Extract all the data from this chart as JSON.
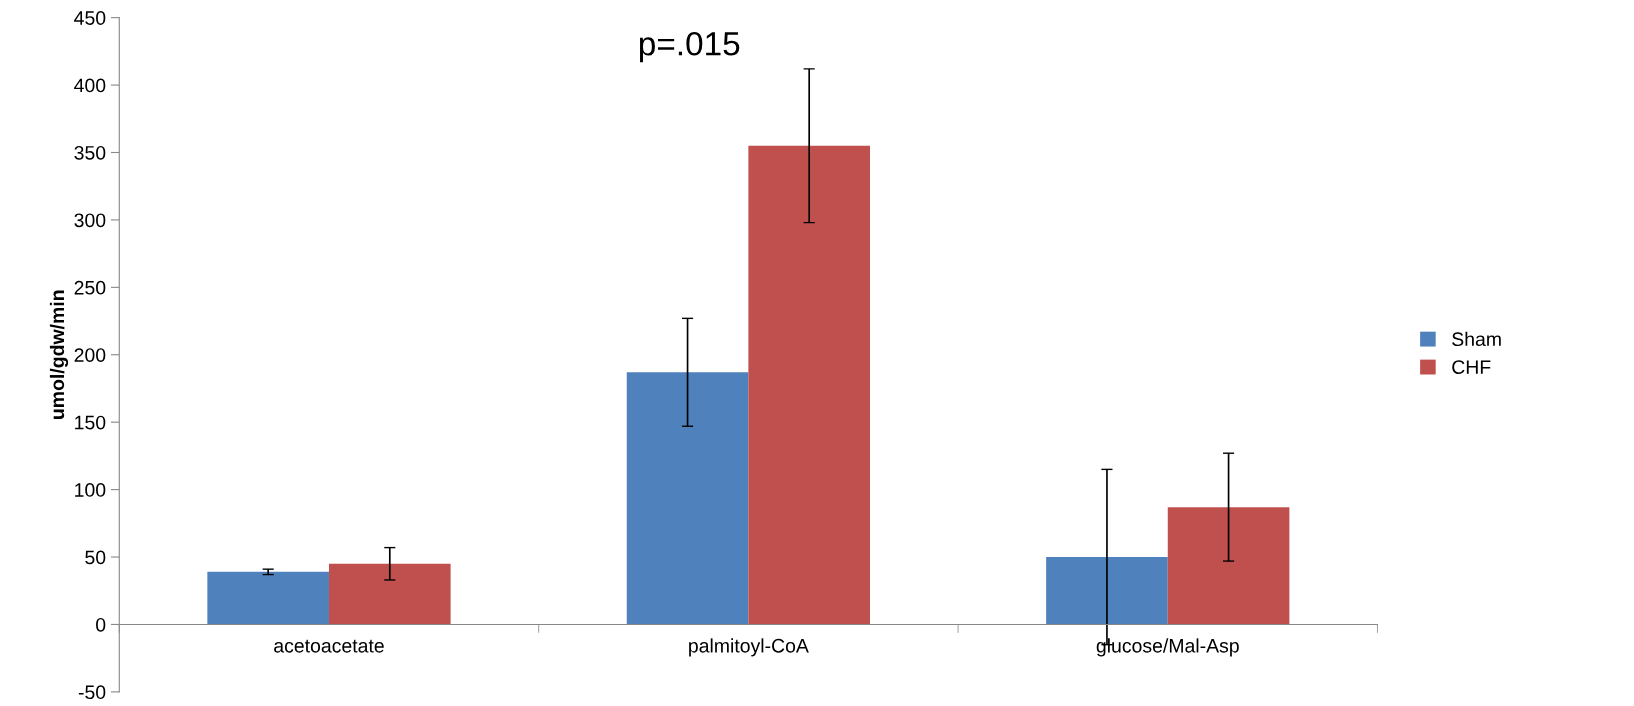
{
  "chart_data": {
    "type": "bar",
    "ylabel": "umol/gdw/min",
    "categories": [
      "acetoacetate",
      "palmitoyl-CoA",
      "glucose/Mal-Asp"
    ],
    "series": [
      {
        "name": "Sham",
        "color": "#4f81bd",
        "values": [
          39,
          187,
          50
        ],
        "errors": [
          2,
          40,
          65
        ]
      },
      {
        "name": "CHF",
        "color": "#c0504d",
        "values": [
          45,
          355,
          87
        ],
        "errors": [
          12,
          57,
          40
        ]
      }
    ],
    "ylim": [
      -50,
      450
    ],
    "yticks": [
      -50,
      0,
      50,
      100,
      150,
      200,
      250,
      300,
      350,
      400,
      450
    ],
    "annotations": [
      "p=.015"
    ],
    "grid": false,
    "legend": "right"
  }
}
